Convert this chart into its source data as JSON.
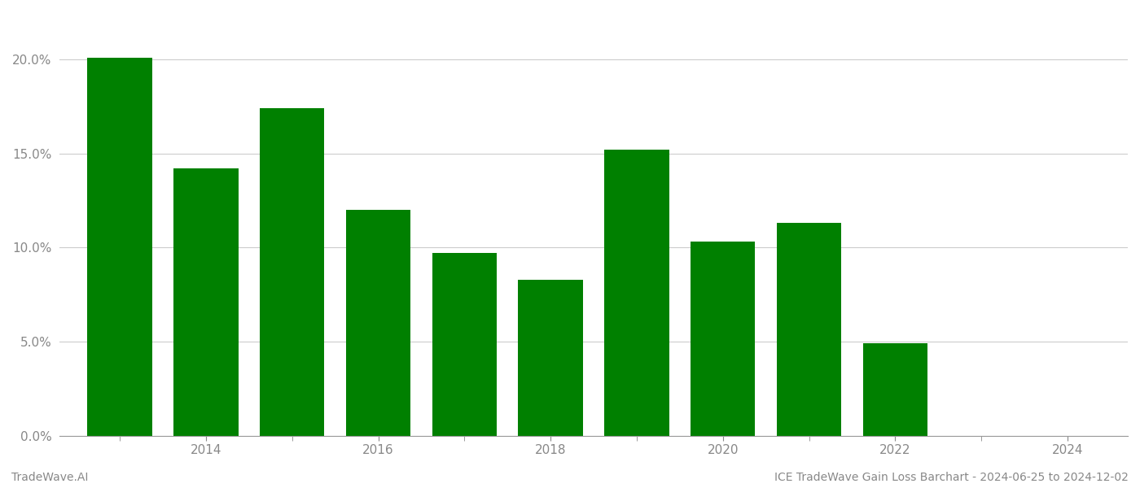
{
  "years": [
    2013,
    2014,
    2015,
    2016,
    2017,
    2018,
    2019,
    2020,
    2021,
    2022,
    2023
  ],
  "values": [
    0.201,
    0.142,
    0.174,
    0.12,
    0.097,
    0.083,
    0.152,
    0.103,
    0.113,
    0.049,
    0.0
  ],
  "bar_color": "#008000",
  "background_color": "#ffffff",
  "grid_color": "#cccccc",
  "axis_color": "#999999",
  "tick_color": "#888888",
  "ylim": [
    0,
    0.225
  ],
  "yticks": [
    0.0,
    0.05,
    0.1,
    0.15,
    0.2
  ],
  "xtick_labels": [
    "2014",
    "2016",
    "2018",
    "2020",
    "2022",
    "2024"
  ],
  "xtick_positions": [
    2014,
    2016,
    2018,
    2020,
    2022,
    2024
  ],
  "minor_xtick_positions": [
    2013,
    2014,
    2015,
    2016,
    2017,
    2018,
    2019,
    2020,
    2021,
    2022,
    2023,
    2024
  ],
  "footer_left": "TradeWave.AI",
  "footer_right": "ICE TradeWave Gain Loss Barchart - 2024-06-25 to 2024-12-02",
  "bar_width": 0.75,
  "xlim_left": 2012.3,
  "xlim_right": 2024.7
}
